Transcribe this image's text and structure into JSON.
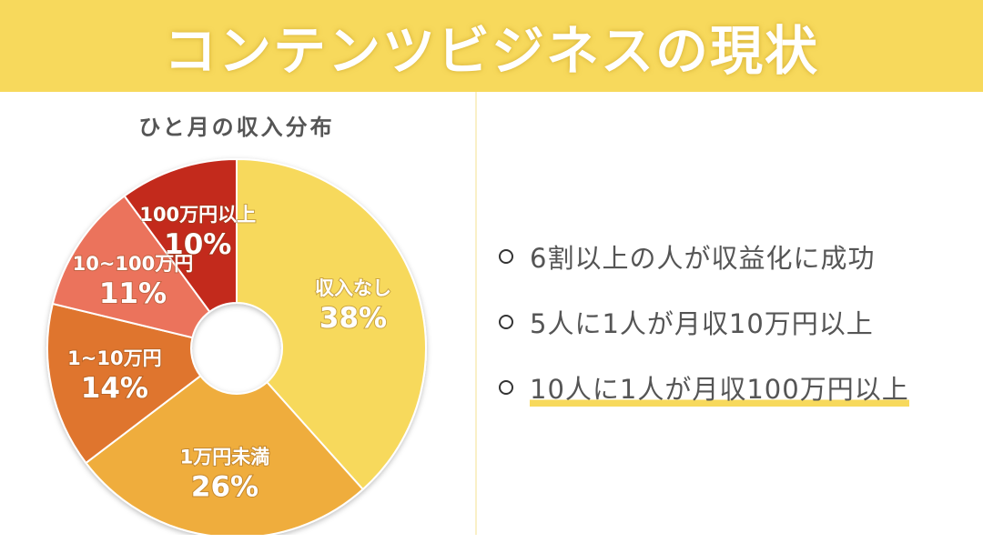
{
  "header": {
    "title": "コンテンツビジネスの現状"
  },
  "chart_data": {
    "type": "pie",
    "donut": true,
    "title": "ひと月の収入分布",
    "slices": [
      {
        "label": "収入なし",
        "value": 38,
        "value_text": "38%",
        "color": "#f7d95c"
      },
      {
        "label": "1万円未満",
        "value": 26,
        "value_text": "26%",
        "color": "#efad3d"
      },
      {
        "label": "1~10万円",
        "value": 14,
        "value_text": "14%",
        "color": "#df752e"
      },
      {
        "label": "10~100万円",
        "value": 11,
        "value_text": "11%",
        "color": "#eb735b"
      },
      {
        "label": "100万円以上",
        "value": 10,
        "value_text": "10%",
        "color": "#c32a1d"
      }
    ]
  },
  "bullets": [
    {
      "text": "6割以上の人が収益化に成功",
      "highlight": false
    },
    {
      "text": "5人に1人が月収10万円以上",
      "highlight": false
    },
    {
      "text": "10人に1人が月収100万円以上",
      "highlight": true
    }
  ]
}
